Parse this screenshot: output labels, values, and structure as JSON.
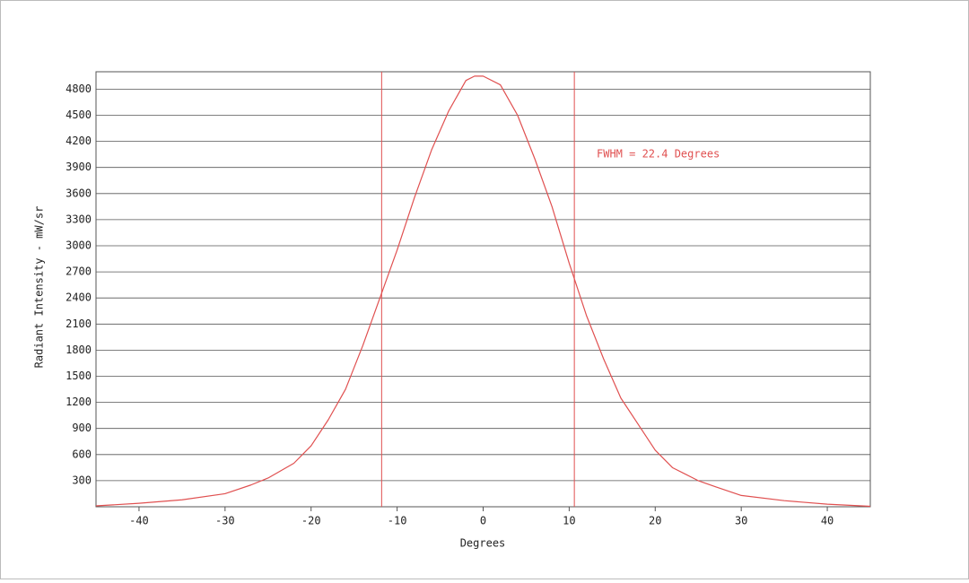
{
  "chart_data": {
    "type": "line",
    "x_label": "Degrees",
    "y_label": "Radiant Intensity - mW/sr",
    "annotation": "FWHM = 22.4 Degrees",
    "fwhm_lines": [
      -11.8,
      10.6
    ],
    "x": [
      -45,
      -40,
      -35,
      -30,
      -27,
      -25,
      -22,
      -20,
      -18,
      -16,
      -14,
      -12,
      -10,
      -8,
      -6,
      -4,
      -2,
      -1,
      0,
      2,
      4,
      6,
      8,
      10,
      12,
      14,
      16,
      18,
      20,
      22,
      25,
      27,
      30,
      35,
      40,
      45
    ],
    "values": [
      10,
      40,
      80,
      150,
      250,
      330,
      500,
      700,
      1000,
      1350,
      1850,
      2400,
      2950,
      3550,
      4100,
      4550,
      4900,
      4950,
      4950,
      4850,
      4500,
      4000,
      3450,
      2800,
      2200,
      1700,
      1250,
      950,
      650,
      450,
      300,
      230,
      130,
      70,
      30,
      5
    ],
    "color": "#e05050",
    "xlim": [
      -45,
      45
    ],
    "xticks": [
      -40,
      -30,
      -20,
      -10,
      0,
      10,
      20,
      30,
      40
    ],
    "ylim": [
      0,
      5000
    ],
    "yticks": [
      300,
      600,
      900,
      1200,
      1500,
      1800,
      2100,
      2400,
      2700,
      3000,
      3300,
      3600,
      3900,
      4200,
      4500,
      4800
    ],
    "grid": true
  }
}
